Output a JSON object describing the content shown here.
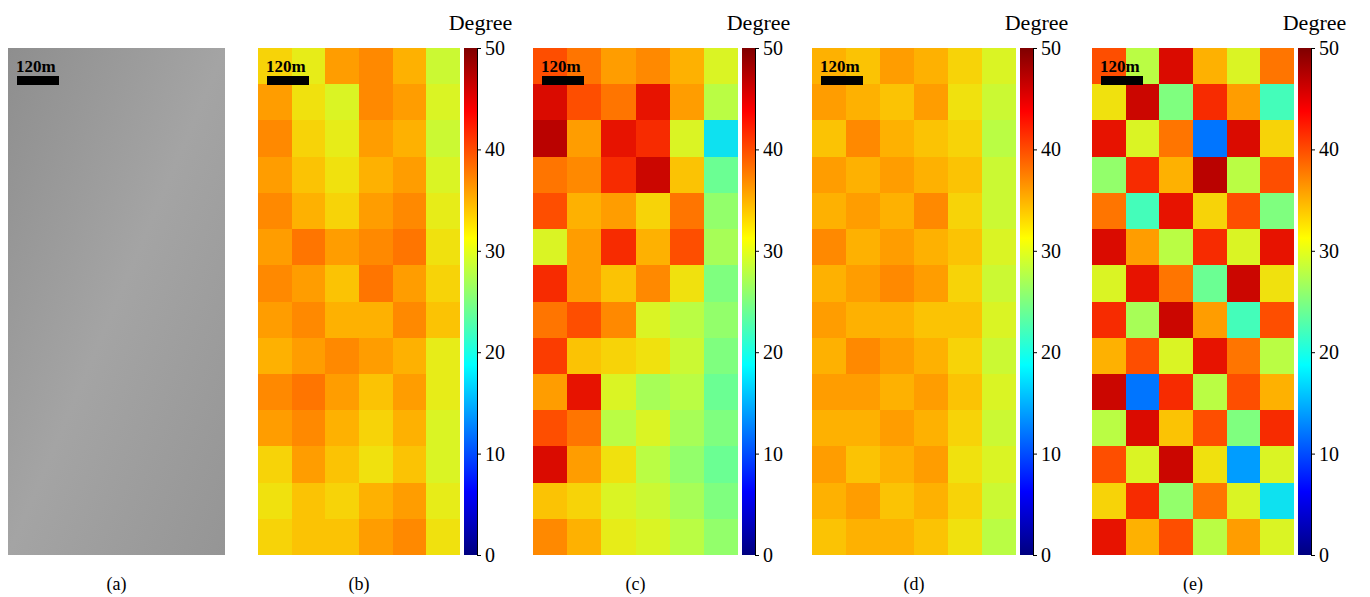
{
  "chart_data": [
    {
      "type": "image",
      "label": "(a)",
      "scale_bar": "120m"
    },
    {
      "type": "heatmap",
      "label": "(b)",
      "scale_bar": "120m",
      "colorbar": {
        "title": "Degree",
        "range": [
          0,
          50
        ],
        "ticks": [
          0,
          10,
          20,
          30,
          40,
          50
        ]
      },
      "cells": [
        [
          33,
          31,
          36,
          37,
          35,
          29
        ],
        [
          36,
          32,
          30,
          37,
          36,
          30
        ],
        [
          37,
          33,
          31,
          36,
          35,
          29
        ],
        [
          36,
          34,
          32,
          35,
          36,
          30
        ],
        [
          37,
          35,
          33,
          36,
          37,
          31
        ],
        [
          36,
          38,
          36,
          37,
          38,
          32
        ],
        [
          37,
          36,
          34,
          38,
          36,
          33
        ],
        [
          36,
          37,
          35,
          35,
          37,
          34
        ],
        [
          35,
          36,
          37,
          36,
          35,
          31
        ],
        [
          37,
          38,
          36,
          34,
          36,
          31
        ],
        [
          36,
          37,
          35,
          33,
          35,
          30
        ],
        [
          33,
          36,
          34,
          32,
          34,
          30
        ],
        [
          32,
          34,
          33,
          35,
          36,
          31
        ],
        [
          33,
          34,
          34,
          36,
          37,
          32
        ]
      ]
    },
    {
      "type": "heatmap",
      "label": "(c)",
      "scale_bar": "120m",
      "colorbar": {
        "title": "Degree",
        "range": [
          0,
          50
        ],
        "ticks": [
          0,
          10,
          20,
          30,
          40,
          50
        ]
      },
      "cells": [
        [
          40,
          38,
          36,
          37,
          35,
          30
        ],
        [
          45,
          40,
          38,
          44,
          36,
          28
        ],
        [
          47,
          36,
          44,
          42,
          30,
          18
        ],
        [
          38,
          37,
          42,
          46,
          34,
          24
        ],
        [
          40,
          35,
          36,
          33,
          38,
          26
        ],
        [
          30,
          36,
          42,
          35,
          40,
          27
        ],
        [
          42,
          36,
          34,
          37,
          32,
          25
        ],
        [
          38,
          40,
          37,
          30,
          28,
          26
        ],
        [
          41,
          34,
          33,
          32,
          29,
          25
        ],
        [
          36,
          44,
          30,
          27,
          28,
          24
        ],
        [
          40,
          38,
          28,
          30,
          27,
          25
        ],
        [
          45,
          36,
          32,
          28,
          26,
          24
        ],
        [
          34,
          33,
          30,
          29,
          27,
          25
        ],
        [
          37,
          35,
          31,
          30,
          28,
          26
        ]
      ]
    },
    {
      "type": "heatmap",
      "label": "(d)",
      "scale_bar": "120m",
      "colorbar": {
        "title": "Degree",
        "range": [
          0,
          50
        ],
        "ticks": [
          0,
          10,
          20,
          30,
          40,
          50
        ]
      },
      "cells": [
        [
          35,
          34,
          36,
          35,
          33,
          30
        ],
        [
          36,
          35,
          34,
          36,
          32,
          29
        ],
        [
          34,
          37,
          35,
          34,
          33,
          28
        ],
        [
          36,
          35,
          36,
          35,
          34,
          29
        ],
        [
          35,
          36,
          35,
          37,
          33,
          29
        ],
        [
          37,
          35,
          36,
          35,
          34,
          30
        ],
        [
          35,
          36,
          37,
          36,
          33,
          29
        ],
        [
          36,
          35,
          35,
          34,
          34,
          30
        ],
        [
          35,
          37,
          36,
          35,
          33,
          29
        ],
        [
          36,
          36,
          35,
          36,
          34,
          30
        ],
        [
          35,
          35,
          36,
          35,
          33,
          29
        ],
        [
          36,
          34,
          35,
          36,
          32,
          30
        ],
        [
          35,
          36,
          34,
          35,
          33,
          29
        ],
        [
          34,
          35,
          35,
          34,
          32,
          28
        ]
      ]
    },
    {
      "type": "heatmap",
      "label": "(e)",
      "scale_bar": "120m",
      "colorbar": {
        "title": "Degree",
        "range": [
          0,
          50
        ],
        "ticks": [
          0,
          10,
          20,
          30,
          40,
          50
        ]
      },
      "cells": [
        [
          40,
          28,
          45,
          35,
          30,
          38
        ],
        [
          32,
          46,
          25,
          42,
          36,
          22
        ],
        [
          44,
          30,
          38,
          12,
          45,
          33
        ],
        [
          26,
          42,
          35,
          47,
          28,
          40
        ],
        [
          38,
          22,
          44,
          33,
          40,
          25
        ],
        [
          45,
          36,
          28,
          42,
          30,
          44
        ],
        [
          30,
          44,
          38,
          24,
          46,
          32
        ],
        [
          42,
          27,
          46,
          36,
          22,
          40
        ],
        [
          35,
          40,
          30,
          44,
          38,
          28
        ],
        [
          46,
          12,
          42,
          28,
          40,
          35
        ],
        [
          28,
          45,
          34,
          40,
          25,
          42
        ],
        [
          40,
          30,
          46,
          32,
          14,
          30
        ],
        [
          33,
          42,
          26,
          38,
          30,
          18
        ],
        [
          44,
          35,
          40,
          28,
          36,
          30
        ]
      ]
    }
  ]
}
